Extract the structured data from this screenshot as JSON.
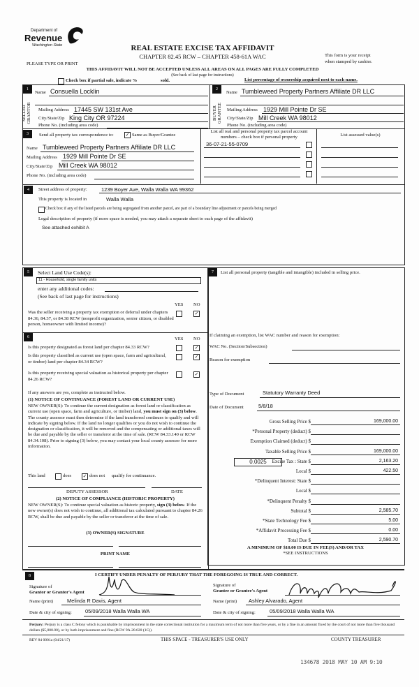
{
  "header": {
    "logo": {
      "line1": "Department of",
      "line2": "Revenue",
      "line3": "Washington State"
    },
    "title": "REAL ESTATE EXCISE TAX AFFIDAVIT",
    "chapter": "CHAPTER 82.45 RCW – CHAPTER 458-61A WAC",
    "please": "PLEASE TYPE OR PRINT",
    "receipt1": "This form is your receipt",
    "receipt2": "when stamped by cashier.",
    "warning": "THIS AFFIDAVIT WILL NOT BE ACCEPTED UNLESS ALL AREAS ON ALL PAGES ARE FULLY COMPLETED",
    "see_back": "(See back of last page for instructions)",
    "partial_sale": "Check box if partial sale, indicate %",
    "sold": "sold.",
    "ownership": "List percentage of ownership acquired next to each name."
  },
  "seller": {
    "num": "1",
    "side_label": "SELLER GRANTOR",
    "name_label": "Name",
    "name": "Consuella Locklin",
    "mail_label": "Mailing Address",
    "mail": "17445 SW 131st Ave",
    "city_label": "City/State/Zip",
    "city": "King City OR 97224",
    "phone_label": "Phone No. (including area code)"
  },
  "buyer": {
    "num": "2",
    "side_label": "BUYER GRANTEE",
    "name_label": "Name",
    "name": "Tumbleweed Property Partners Affiliate DR LLC",
    "mail_label": "Mailing Address",
    "mail": "1929 Mill Pointe Dr SE",
    "city_label": "City/State/Zip",
    "city": "Mill Creek WA 98012",
    "phone_label": "Phone No. (including area code)"
  },
  "correspondence": {
    "num": "3",
    "send_label": "Send all property tax correspondence to:",
    "same_label": "Same as Buyer/Grantee",
    "same_checked": true,
    "name_label": "Name",
    "name": "Tumbleweed Property Partners Affiliate DR LLC",
    "mail_label": "Mailing Address",
    "mail": "1929 Mill Pointe Dr SE",
    "city_label": "City/State/Zip",
    "city": "Mill Creek WA 98012",
    "phone_label": "Phone No. (including area code)",
    "parcel_header": "List all real and personal property tax parcel account numbers – check box if personal property",
    "assessed_header": "List assessed value(s)",
    "parcels": [
      "36-07-21-55-0709",
      "",
      "",
      ""
    ]
  },
  "property": {
    "num": "4",
    "street_label": "Street address of property:",
    "street": "1239 Boyer Ave, Walla Walla WA 99362",
    "located_label": "This property is located in",
    "located": "Walla Walla",
    "segregated_label": "Check box if any of the listed parcels are being segregated from another parcel, are part of a boundary line adjustment or parcels being merged",
    "legal_label": "Legal description of property (if more space is needed, you may attach a separate sheet to each page of the affidavit)",
    "legal": "See attached exhibit A"
  },
  "section5": {
    "num": "5",
    "title": "Select Land Use Code(s):",
    "code": "11 - Household, single family units",
    "additional": "enter any additional codes:",
    "see_back": "(See back of last page for instructions)",
    "yes": "YES",
    "no": "NO",
    "question": "Was the seller receiving a property tax exemption or deferral under chapters 84.36, 84.37, or 84.38 RCW (nonprofit organization, senior citizen, or disabled person, homeowner with limited income)?",
    "answer": "NO"
  },
  "section6": {
    "num": "6",
    "yes": "YES",
    "no": "NO",
    "questions": [
      {
        "text": "Is this property designated as forest land per chapter 84.33 RCW?",
        "answer": "NO"
      },
      {
        "text": "Is this property classified as current use (open space, farm and agricultural, or timber) land per chapter 84.34 RCW?",
        "answer": "NO"
      },
      {
        "text": "Is this property receiving special valuation as historical property per chapter 84.26 RCW?",
        "answer": "NO"
      }
    ],
    "if_yes": "If any answers are yes, complete as instructed below.",
    "n1_title": "(1) NOTICE OF CONTINUANCE (FOREST LAND OR CURRENT USE)",
    "n1_a": "NEW OWNER(S): To continue the current designation as forest land or classification as current use (open space, farm and agriculture, or timber) land,",
    "n1_bold": "you must sign on (3) below",
    "n1_b": ". The county assessor must then determine if the land transferred continues to qualify and will indicate by signing below. If the land no longer qualifies or you do not wish to continue the designation or classification, it will be removed and the compensating or additional taxes will be due and payable by the seller or transferor at the time of sale. (RCW 84.33.140 or RCW 84.34.108). Prior to signing (3) below, you may contact your local county assessor for more information.",
    "this_land": "This land",
    "does": "does",
    "does_not": "does not",
    "qualify": "qualify for continuance.",
    "does_not_checked": true,
    "deputy": "DEPUTY ASSESSOR",
    "date": "DATE",
    "n2_title": "(2) NOTICE OF COMPLIANCE (HISTORIC PROPERTY)",
    "n2_a": "NEW OWNER(S): To continue special valuation as historic property,",
    "n2_bold": "sign (3) below",
    "n2_b": ". If the new owner(s) does not wish to continue, all additional tax calculated pursuant to chapter 84.26 RCW, shall be due and payable by the seller or transferor at the time of sale.",
    "n3_title": "(3) OWNER(S) SIGNATURE",
    "print_name": "PRINT NAME"
  },
  "section7": {
    "num": "7",
    "personal": "List all  personal property (tangible and intangible) included in selling price.",
    "exemption": "If claiming an exemption, list WAC number and reason for exemption:",
    "wac_label": "WAC No. (Section/Subsection)",
    "reason_label": "Reason for exemption",
    "doc_type_label": "Type of Document",
    "doc_type": "Statutory Warranty Deed",
    "doc_date_label": "Date of Document",
    "doc_date": "5/8/18",
    "local_rate": "0.0025",
    "rows": [
      {
        "label": "Gross Selling Price $",
        "value": "169,000.00"
      },
      {
        "label": "*Personal Property (deduct) $",
        "value": ""
      },
      {
        "label": "Exemption Claimed (deduct) $",
        "value": ""
      },
      {
        "label": "Taxable Selling Price $",
        "value": "169,000.00"
      },
      {
        "label": "Excise Tax : State $",
        "value": "2,163.20"
      },
      {
        "label": "Local $",
        "value": "422.50"
      },
      {
        "label": "*Delinquent Interest: State $",
        "value": ""
      },
      {
        "label": "Local $",
        "value": ""
      },
      {
        "label": "*Delinquent Penalty $",
        "value": ""
      },
      {
        "label": "Subtotal $",
        "value": "2,585.70"
      },
      {
        "label": "*State Technology Fee $",
        "value": "5.00"
      },
      {
        "label": "*Affidavit Processing Fee $",
        "value": "0.00"
      },
      {
        "label": "Total Due $",
        "value": "2,590.70"
      }
    ],
    "minimum": "A MINIMUM OF $10.00 IS DUE IN FEE(S) AND/OR TAX",
    "see_instr": "*SEE INSTRUCTIONS"
  },
  "section8": {
    "num": "8",
    "certify": "I CERTIFY UNDER PENALTY OF PERJURY THAT THE FOREGOING IS TRUE AND CORRECT.",
    "grantor_sig_1": "Signature of",
    "grantor_sig_2": "Grantor or Grantor's Agent",
    "grantor_name_label": "Name (print)",
    "grantor_name": "Melinda R Davis, Agent",
    "grantor_date_label": "Date & city of signing:",
    "grantor_date": "05/09/2018 Walla Walla WA",
    "grantee_sig_1": "Signature of",
    "grantee_sig_2": "Grantee or Grantee's Agent",
    "grantee_name_label": "Name (print)",
    "grantee_name": "Ashley Alvarado, Agent",
    "grantee_date_label": "Date & city of signing:",
    "grantee_date": "05/09/2018 Walla Walla WA"
  },
  "footer": {
    "perjury_bold": "Perjury:",
    "perjury": " Perjury is a class C felony which is punishable by imprisonment in the state correctional institution for a maximum term of not more than five years, or by a fine in an amount fixed by the court of not more than five thousand dollars ($5,000.00), or by both imprisonment and fine (RCW 9A.20.020 (1C)).",
    "rev": "REV 84 0001a (04/21/17)",
    "treasurer_space": "THIS SPACE - TREASURER'S USE ONLY",
    "county_treasurer": "COUNTY TREASURER",
    "stamp": "134678 2018 MAY 10 AM 9:10"
  }
}
